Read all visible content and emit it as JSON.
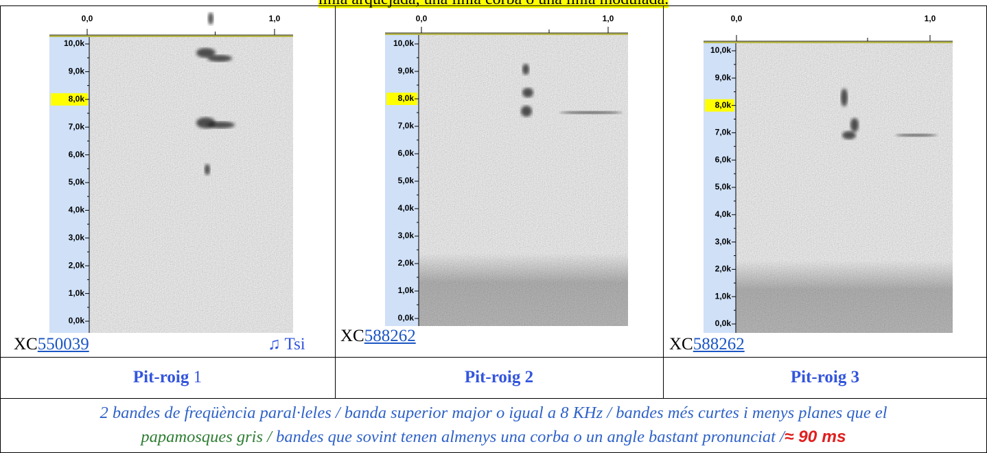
{
  "caption_top": "línia arquejada, una línia corba o una línia modulada.",
  "panels": [
    {
      "time_ticks": [
        "0,0",
        "1,0"
      ],
      "freq_ticks": [
        "10,0k",
        "9,0k",
        "8,0k",
        "7,0k",
        "6,0k",
        "5,0k",
        "4,0k",
        "3,0k",
        "2,0k",
        "1,0k",
        "0,0k"
      ],
      "source_prefix": "XC",
      "source_id": "550039",
      "note": "♫ Tsi"
    },
    {
      "time_ticks": [
        "0,0",
        "1,0"
      ],
      "freq_ticks": [
        "10,0k",
        "9,0k",
        "8,0k",
        "7,0k",
        "6,0k",
        "5,0k",
        "4,0k",
        "3,0k",
        "2,0k",
        "1,0k",
        "0,0k"
      ],
      "source_prefix": "XC",
      "source_id": "588262"
    },
    {
      "time_ticks": [
        "0,0",
        "1,0"
      ],
      "freq_ticks": [
        "10,0k",
        "9,0k",
        "8,0k",
        "7,0k",
        "6,0k",
        "5,0k",
        "4,0k",
        "3,0k",
        "2,0k",
        "1,0k",
        "0,0k"
      ],
      "source_prefix": "XC",
      "source_id": "588262"
    }
  ],
  "labels": [
    {
      "name": "Pit-roig",
      "number": "1"
    },
    {
      "name": "Pit-roig",
      "number": "2"
    },
    {
      "name": "Pit-roig",
      "number": "3"
    }
  ],
  "description": [
    "2 bandes de freqüència paral·leles  / banda superior major o igual a 8 KHz / bandes més curtes i menys planes que el",
    "papamosques gris / ",
    " bandes que sovint tenen almenys una corba o un angle bastant pronunciat /",
    "≈ 90 ms"
  ]
}
